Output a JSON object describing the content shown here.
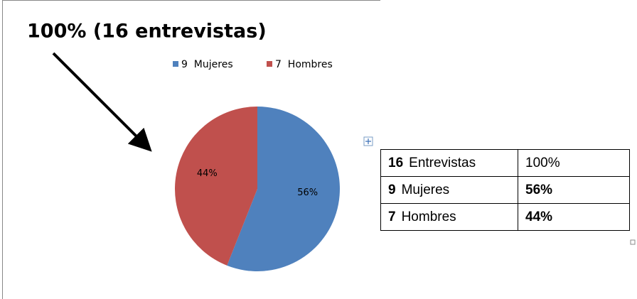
{
  "chart_data": {
    "type": "pie",
    "title": "100% (16 entrevistas)",
    "categories": [
      "9  Mujeres",
      "7  Hombres"
    ],
    "values": [
      56,
      44
    ],
    "value_labels": [
      "56%",
      "44%"
    ],
    "colors": [
      "#4f81bd",
      "#c0504d"
    ]
  },
  "table": {
    "rows": [
      [
        "16",
        "Entrevistas",
        "100%"
      ],
      [
        "9",
        "Mujeres",
        "56%"
      ],
      [
        "7",
        "Hombres",
        "44%"
      ]
    ]
  }
}
